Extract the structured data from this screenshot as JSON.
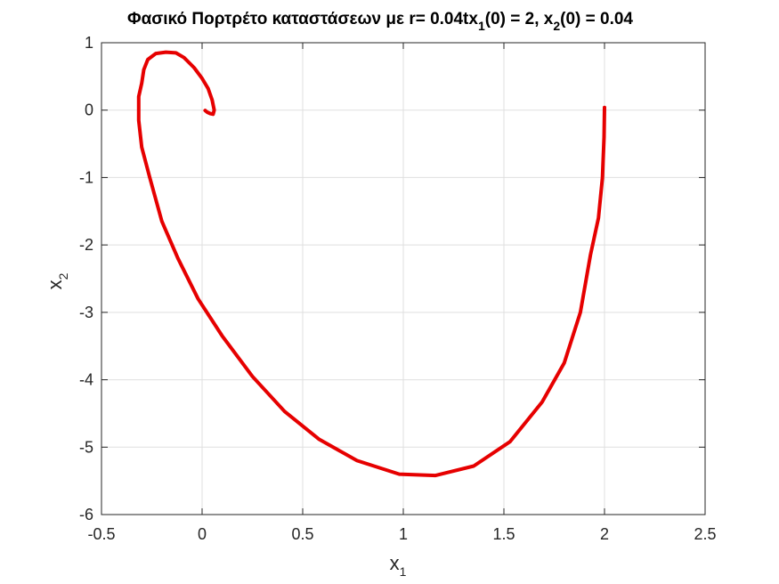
{
  "chart_data": {
    "type": "line",
    "title": {
      "main": "Φασικό Πορτρέτο καταστάσεων με r= 0.04tx",
      "sub1": "1",
      "mid": "(0) = 2, x",
      "sub2": "2",
      "end": "(0) = 0.04"
    },
    "xlabel": {
      "base": "x",
      "sub": "1"
    },
    "ylabel": {
      "base": "x",
      "sub": "2"
    },
    "xlim": [
      -0.5,
      2.5
    ],
    "ylim": [
      -6,
      1
    ],
    "xticks": [
      -0.5,
      0,
      0.5,
      1,
      1.5,
      2,
      2.5
    ],
    "xtick_labels": [
      "-0.5",
      "0",
      "0.5",
      "1",
      "1.5",
      "2",
      "2.5"
    ],
    "yticks": [
      -6,
      -5,
      -4,
      -3,
      -2,
      -1,
      0,
      1
    ],
    "ytick_labels": [
      "-6",
      "-5",
      "-4",
      "-3",
      "-2",
      "-1",
      "0",
      "1"
    ],
    "grid": true,
    "series": [
      {
        "color": "#e60000",
        "x": [
          2.0,
          1.998,
          1.99,
          1.97,
          1.93,
          1.88,
          1.8,
          1.69,
          1.53,
          1.35,
          1.16,
          0.98,
          0.77,
          0.58,
          0.41,
          0.25,
          0.1,
          -0.02,
          -0.12,
          -0.2,
          -0.26,
          -0.3,
          -0.315,
          -0.315,
          -0.3,
          -0.29,
          -0.27,
          -0.23,
          -0.18,
          -0.13,
          -0.09,
          -0.04,
          0.0,
          0.03,
          0.05,
          0.06,
          0.055,
          0.04,
          0.025,
          0.015
        ],
        "y": [
          0.04,
          -0.4,
          -1.0,
          -1.6,
          -2.15,
          -3.0,
          -3.75,
          -4.33,
          -4.92,
          -5.28,
          -5.42,
          -5.4,
          -5.2,
          -4.88,
          -4.47,
          -3.95,
          -3.35,
          -2.8,
          -2.2,
          -1.65,
          -1.0,
          -0.55,
          -0.15,
          0.2,
          0.4,
          0.6,
          0.75,
          0.84,
          0.86,
          0.85,
          0.78,
          0.63,
          0.47,
          0.32,
          0.15,
          0.0,
          -0.06,
          -0.05,
          -0.03,
          -0.005
        ]
      }
    ]
  }
}
